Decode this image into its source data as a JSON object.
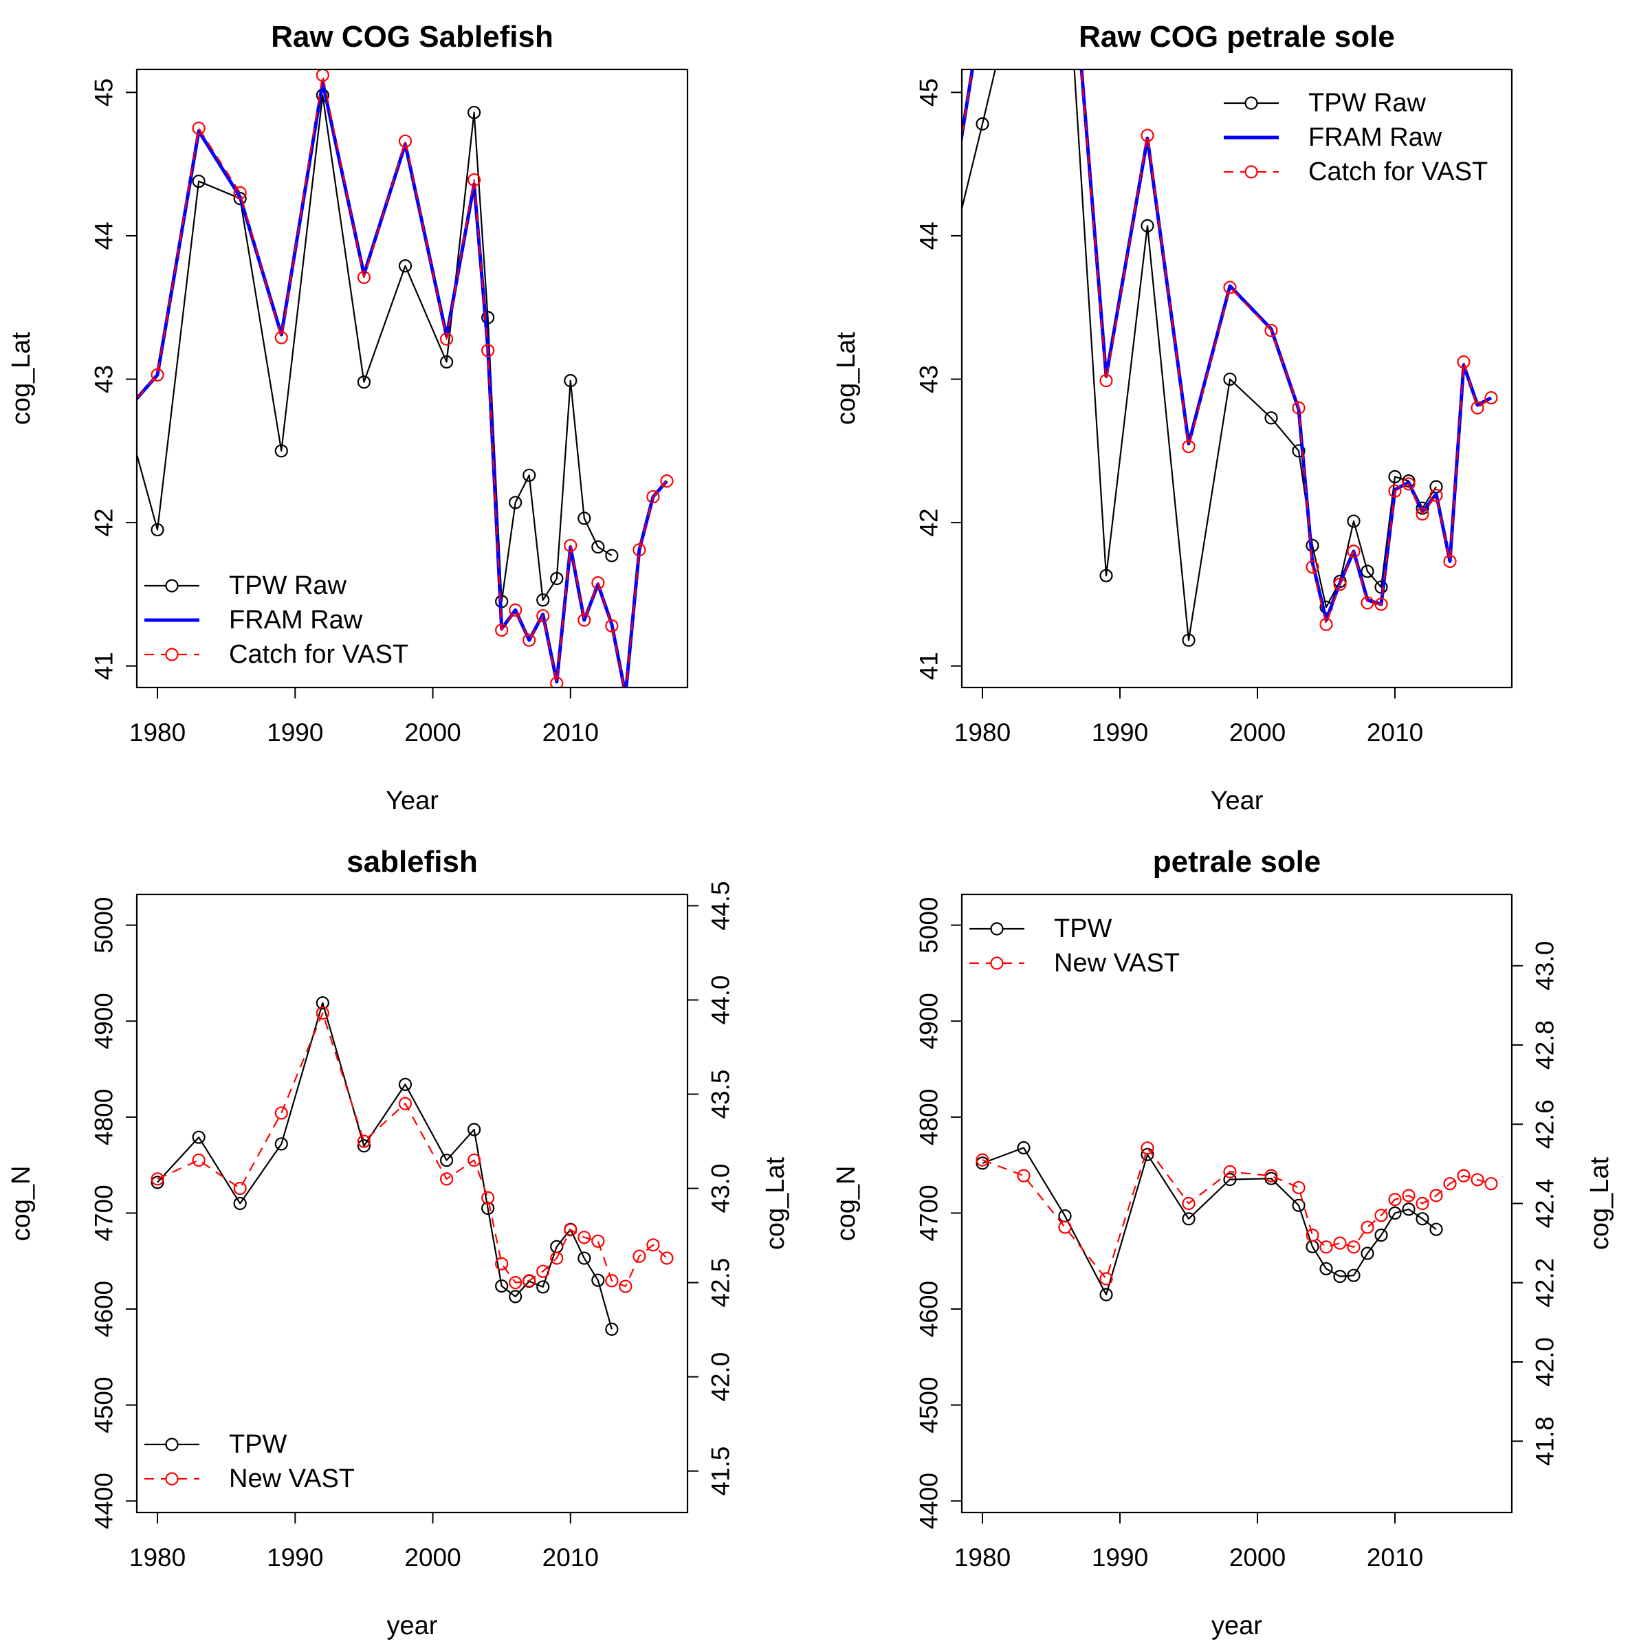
{
  "chart_data": [
    {
      "type": "line",
      "title": "Raw COG Sablefish",
      "xlabel": "Year",
      "ylabel": "cog_Lat",
      "xlim": [
        1978.5,
        2018.5
      ],
      "ylim": [
        40.85,
        45.16
      ],
      "xticks": [
        1980,
        1990,
        2000,
        2010
      ],
      "yticks": [
        41,
        42,
        43,
        44,
        45
      ],
      "legend": {
        "position": "bottom-left",
        "entries": [
          "TPW Raw",
          "FRAM Raw",
          "Catch for VAST"
        ]
      },
      "series": [
        {
          "name": "TPW Raw",
          "color": "#000000",
          "style": "line-points",
          "x": [
            1977,
            1980,
            1983,
            1986,
            1989,
            1992,
            1995,
            1998,
            2001,
            2003,
            2004,
            2005,
            2006,
            2007,
            2008,
            2009,
            2010,
            2011,
            2012,
            2013
          ],
          "y": [
            43.0,
            41.95,
            44.38,
            44.26,
            42.5,
            44.98,
            42.98,
            43.79,
            43.12,
            44.86,
            43.43,
            41.45,
            42.14,
            42.33,
            41.46,
            41.61,
            42.99,
            42.03,
            41.83,
            41.77
          ]
        },
        {
          "name": "FRAM Raw",
          "color": "#0000ff",
          "style": "thick-line",
          "x": [
            1977,
            1980,
            1983,
            1986,
            1989,
            1992,
            1995,
            1998,
            2001,
            2003,
            2004,
            2005,
            2006,
            2007,
            2008,
            2009,
            2010,
            2011,
            2012,
            2013,
            2014,
            2015,
            2016,
            2017
          ],
          "y": [
            42.7,
            43.03,
            44.73,
            44.27,
            43.31,
            45.07,
            43.73,
            44.64,
            43.3,
            44.36,
            43.22,
            41.26,
            41.39,
            41.18,
            41.36,
            40.89,
            41.83,
            41.32,
            41.57,
            41.29,
            40.8,
            41.81,
            42.18,
            42.29
          ]
        },
        {
          "name": "Catch for VAST",
          "color": "#ff0000",
          "style": "dashed-points",
          "x": [
            1977,
            1980,
            1983,
            1986,
            1989,
            1992,
            1995,
            1998,
            2001,
            2003,
            2004,
            2005,
            2006,
            2007,
            2008,
            2009,
            2010,
            2011,
            2012,
            2013,
            2014,
            2015,
            2016,
            2017
          ],
          "y": [
            42.7,
            43.03,
            44.75,
            44.3,
            43.29,
            45.12,
            43.71,
            44.66,
            43.28,
            44.39,
            43.2,
            41.25,
            41.39,
            41.18,
            41.35,
            40.88,
            41.84,
            41.32,
            41.58,
            41.28,
            40.8,
            41.81,
            42.18,
            42.29
          ]
        }
      ]
    },
    {
      "type": "line",
      "title": "Raw COG petrale sole",
      "xlabel": "Year",
      "ylabel": "cog_Lat",
      "xlim": [
        1978.5,
        2018.5
      ],
      "ylim": [
        40.85,
        45.16
      ],
      "xticks": [
        1980,
        1990,
        2000,
        2010
      ],
      "yticks": [
        41,
        42,
        43,
        44,
        45
      ],
      "legend": {
        "position": "top-right",
        "entries": [
          "TPW Raw",
          "FRAM Raw",
          "Catch for VAST"
        ]
      },
      "series": [
        {
          "name": "TPW Raw",
          "color": "#000000",
          "style": "line-points",
          "x": [
            1977,
            1980,
            1983,
            1986,
            1989,
            1992,
            1995,
            1998,
            2001,
            2003,
            2004,
            2005,
            2006,
            2007,
            2008,
            2009,
            2010,
            2011,
            2012,
            2013
          ],
          "y": [
            43.6,
            44.78,
            46.0,
            46.2,
            41.63,
            44.07,
            41.18,
            43.0,
            42.73,
            42.5,
            41.84,
            41.41,
            41.59,
            42.01,
            41.66,
            41.55,
            42.32,
            42.29,
            42.1,
            42.25
          ]
        },
        {
          "name": "FRAM Raw",
          "color": "#0000ff",
          "style": "thick-line",
          "x": [
            1977,
            1980,
            1983,
            1986,
            1989,
            1992,
            1995,
            1998,
            2001,
            2003,
            2004,
            2005,
            2006,
            2007,
            2008,
            2009,
            2010,
            2011,
            2012,
            2013,
            2014,
            2015,
            2016,
            2017
          ],
          "y": [
            43.8,
            45.6,
            46.4,
            46.6,
            43.02,
            44.68,
            42.55,
            43.65,
            43.35,
            42.79,
            41.72,
            41.32,
            41.58,
            41.8,
            41.46,
            41.43,
            42.23,
            42.28,
            42.07,
            42.2,
            41.73,
            43.1,
            42.82,
            42.87
          ]
        },
        {
          "name": "Catch for VAST",
          "color": "#ff0000",
          "style": "dashed-points",
          "x": [
            1977,
            1980,
            1983,
            1986,
            1989,
            1992,
            1995,
            1998,
            2001,
            2003,
            2004,
            2005,
            2006,
            2007,
            2008,
            2009,
            2010,
            2011,
            2012,
            2013,
            2014,
            2015,
            2016,
            2017
          ],
          "y": [
            43.8,
            45.6,
            46.4,
            46.6,
            42.99,
            44.7,
            42.53,
            43.64,
            43.34,
            42.8,
            41.69,
            41.29,
            41.57,
            41.8,
            41.44,
            41.43,
            42.22,
            42.27,
            42.06,
            42.19,
            41.73,
            43.12,
            42.8,
            42.87
          ]
        }
      ]
    },
    {
      "type": "line",
      "title": "sablefish",
      "xlabel": "year",
      "ylabel": "cog_N",
      "y2label": "cog_Lat",
      "xlim": [
        1978.5,
        2018.5
      ],
      "ylim": [
        4388,
        5032
      ],
      "y2lim": [
        41.28,
        44.56
      ],
      "xticks": [
        1980,
        1990,
        2000,
        2010
      ],
      "yticks": [
        4400,
        4500,
        4600,
        4700,
        4800,
        4900,
        5000
      ],
      "y2ticks": [
        41.5,
        42.0,
        42.5,
        43.0,
        43.5,
        44.0,
        44.5
      ],
      "legend": {
        "position": "bottom-left",
        "entries": [
          "TPW",
          "New VAST"
        ]
      },
      "series": [
        {
          "name": "TPW",
          "color": "#000000",
          "style": "line-points",
          "axis": "left",
          "x": [
            1980,
            1983,
            1986,
            1989,
            1992,
            1995,
            1998,
            2001,
            2003,
            2004,
            2005,
            2006,
            2007,
            2008,
            2009,
            2010,
            2011,
            2012,
            2013
          ],
          "y": [
            4732,
            4779,
            4710,
            4772,
            4919,
            4770,
            4834,
            4755,
            4787,
            4705,
            4624,
            4613,
            4629,
            4623,
            4665,
            4683,
            4653,
            4630,
            4579
          ]
        },
        {
          "name": "New VAST",
          "color": "#ff0000",
          "style": "dashed-points",
          "axis": "right",
          "x": [
            1980,
            1983,
            1986,
            1989,
            1992,
            1995,
            1998,
            2001,
            2003,
            2004,
            2005,
            2006,
            2007,
            2008,
            2009,
            2010,
            2011,
            2012,
            2013,
            2014,
            2015,
            2016,
            2017
          ],
          "y": [
            43.05,
            43.15,
            43.0,
            43.4,
            43.93,
            43.25,
            43.45,
            43.05,
            43.15,
            42.95,
            42.6,
            42.5,
            42.51,
            42.56,
            42.63,
            42.78,
            42.74,
            42.72,
            42.51,
            42.48,
            42.64,
            42.7,
            42.63
          ]
        }
      ]
    },
    {
      "type": "line",
      "title": "petrale sole",
      "xlabel": "year",
      "ylabel": "cog_N",
      "y2label": "cog_Lat",
      "xlim": [
        1978.5,
        2018.5
      ],
      "ylim": [
        4388,
        5032
      ],
      "y2lim": [
        41.62,
        43.18
      ],
      "xticks": [
        1980,
        1990,
        2000,
        2010
      ],
      "yticks": [
        4400,
        4500,
        4600,
        4700,
        4800,
        4900,
        5000
      ],
      "y2ticks": [
        41.8,
        42.0,
        42.2,
        42.4,
        42.6,
        42.8,
        43.0
      ],
      "legend": {
        "position": "top-left",
        "entries": [
          "TPW",
          "New VAST"
        ]
      },
      "series": [
        {
          "name": "TPW",
          "color": "#000000",
          "style": "line-points",
          "axis": "left",
          "x": [
            1980,
            1983,
            1986,
            1989,
            1992,
            1995,
            1998,
            2001,
            2003,
            2004,
            2005,
            2006,
            2007,
            2008,
            2009,
            2010,
            2011,
            2012,
            2013
          ],
          "y": [
            4752,
            4768,
            4697,
            4615,
            4761,
            4694,
            4735,
            4736,
            4708,
            4665,
            4642,
            4634,
            4635,
            4658,
            4677,
            4700,
            4704,
            4694,
            4683
          ]
        },
        {
          "name": "New VAST",
          "color": "#ff0000",
          "style": "dashed-points",
          "axis": "right",
          "x": [
            1980,
            1983,
            1986,
            1989,
            1992,
            1995,
            1998,
            2001,
            2003,
            2004,
            2005,
            2006,
            2007,
            2008,
            2009,
            2010,
            2011,
            2012,
            2013,
            2014,
            2015,
            2016,
            2017
          ],
          "y": [
            42.51,
            42.47,
            42.34,
            42.21,
            42.54,
            42.4,
            42.48,
            42.47,
            42.44,
            42.32,
            42.29,
            42.3,
            42.29,
            42.34,
            42.37,
            42.41,
            42.42,
            42.4,
            42.42,
            42.45,
            42.47,
            42.46,
            42.45
          ]
        }
      ]
    }
  ]
}
